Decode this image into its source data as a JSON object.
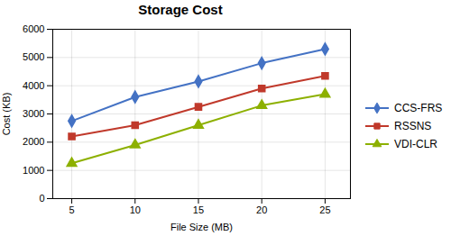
{
  "chart_data": {
    "type": "line",
    "title": "Storage Cost",
    "xlabel": "File Size (MB)",
    "ylabel": "Cost (KB)",
    "x": [
      5,
      10,
      15,
      20,
      25
    ],
    "series": [
      {
        "name": "CCS-FRS",
        "color": "#4472C4",
        "marker": "diamond",
        "values": [
          2750,
          3600,
          4150,
          4800,
          5300
        ]
      },
      {
        "name": "RSSNS",
        "color": "#C0392B",
        "marker": "square",
        "values": [
          2200,
          2600,
          3250,
          3900,
          4350
        ]
      },
      {
        "name": "VDI-CLR",
        "color": "#8DB000",
        "marker": "triangle",
        "values": [
          1250,
          1900,
          2600,
          3300,
          3700
        ]
      }
    ],
    "xlim": [
      3.5,
      27
    ],
    "xticks": [
      5,
      10,
      15,
      20,
      25
    ],
    "ylim": [
      0,
      6000
    ],
    "yticks": [
      0,
      1000,
      2000,
      3000,
      4000,
      5000,
      6000
    ],
    "grid": true,
    "legend": "right"
  }
}
